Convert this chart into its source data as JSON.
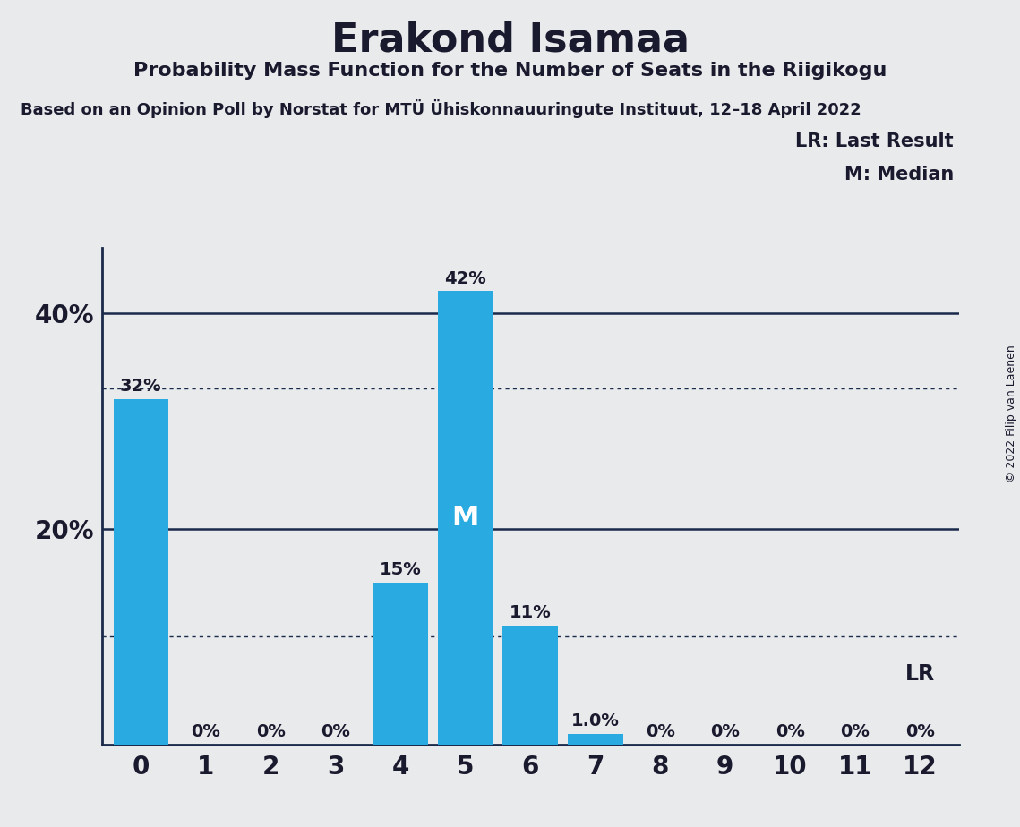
{
  "title": "Erakond Isamaa",
  "subtitle": "Probability Mass Function for the Number of Seats in the Riigikogu",
  "poll_line": "Based on an Opinion Poll by Norstat for MTÜ Ühiskonnauuringute Instituut, 12–18 April 2022",
  "copyright": "© 2022 Filip van Laenen",
  "categories": [
    0,
    1,
    2,
    3,
    4,
    5,
    6,
    7,
    8,
    9,
    10,
    11,
    12
  ],
  "values": [
    32,
    0,
    0,
    0,
    15,
    42,
    11,
    1.0,
    0,
    0,
    0,
    0,
    0
  ],
  "bar_color": "#29abe2",
  "background_color": "#e8eaec",
  "text_color": "#1a1a2e",
  "median_index": 5,
  "lr_index": 12,
  "dotted_line_1": 10,
  "dotted_line_2": 33,
  "solid_line_1": 20,
  "solid_line_2": 40,
  "ylim": [
    0,
    46
  ],
  "legend_lr": "LR: Last Result",
  "legend_m": "M: Median"
}
